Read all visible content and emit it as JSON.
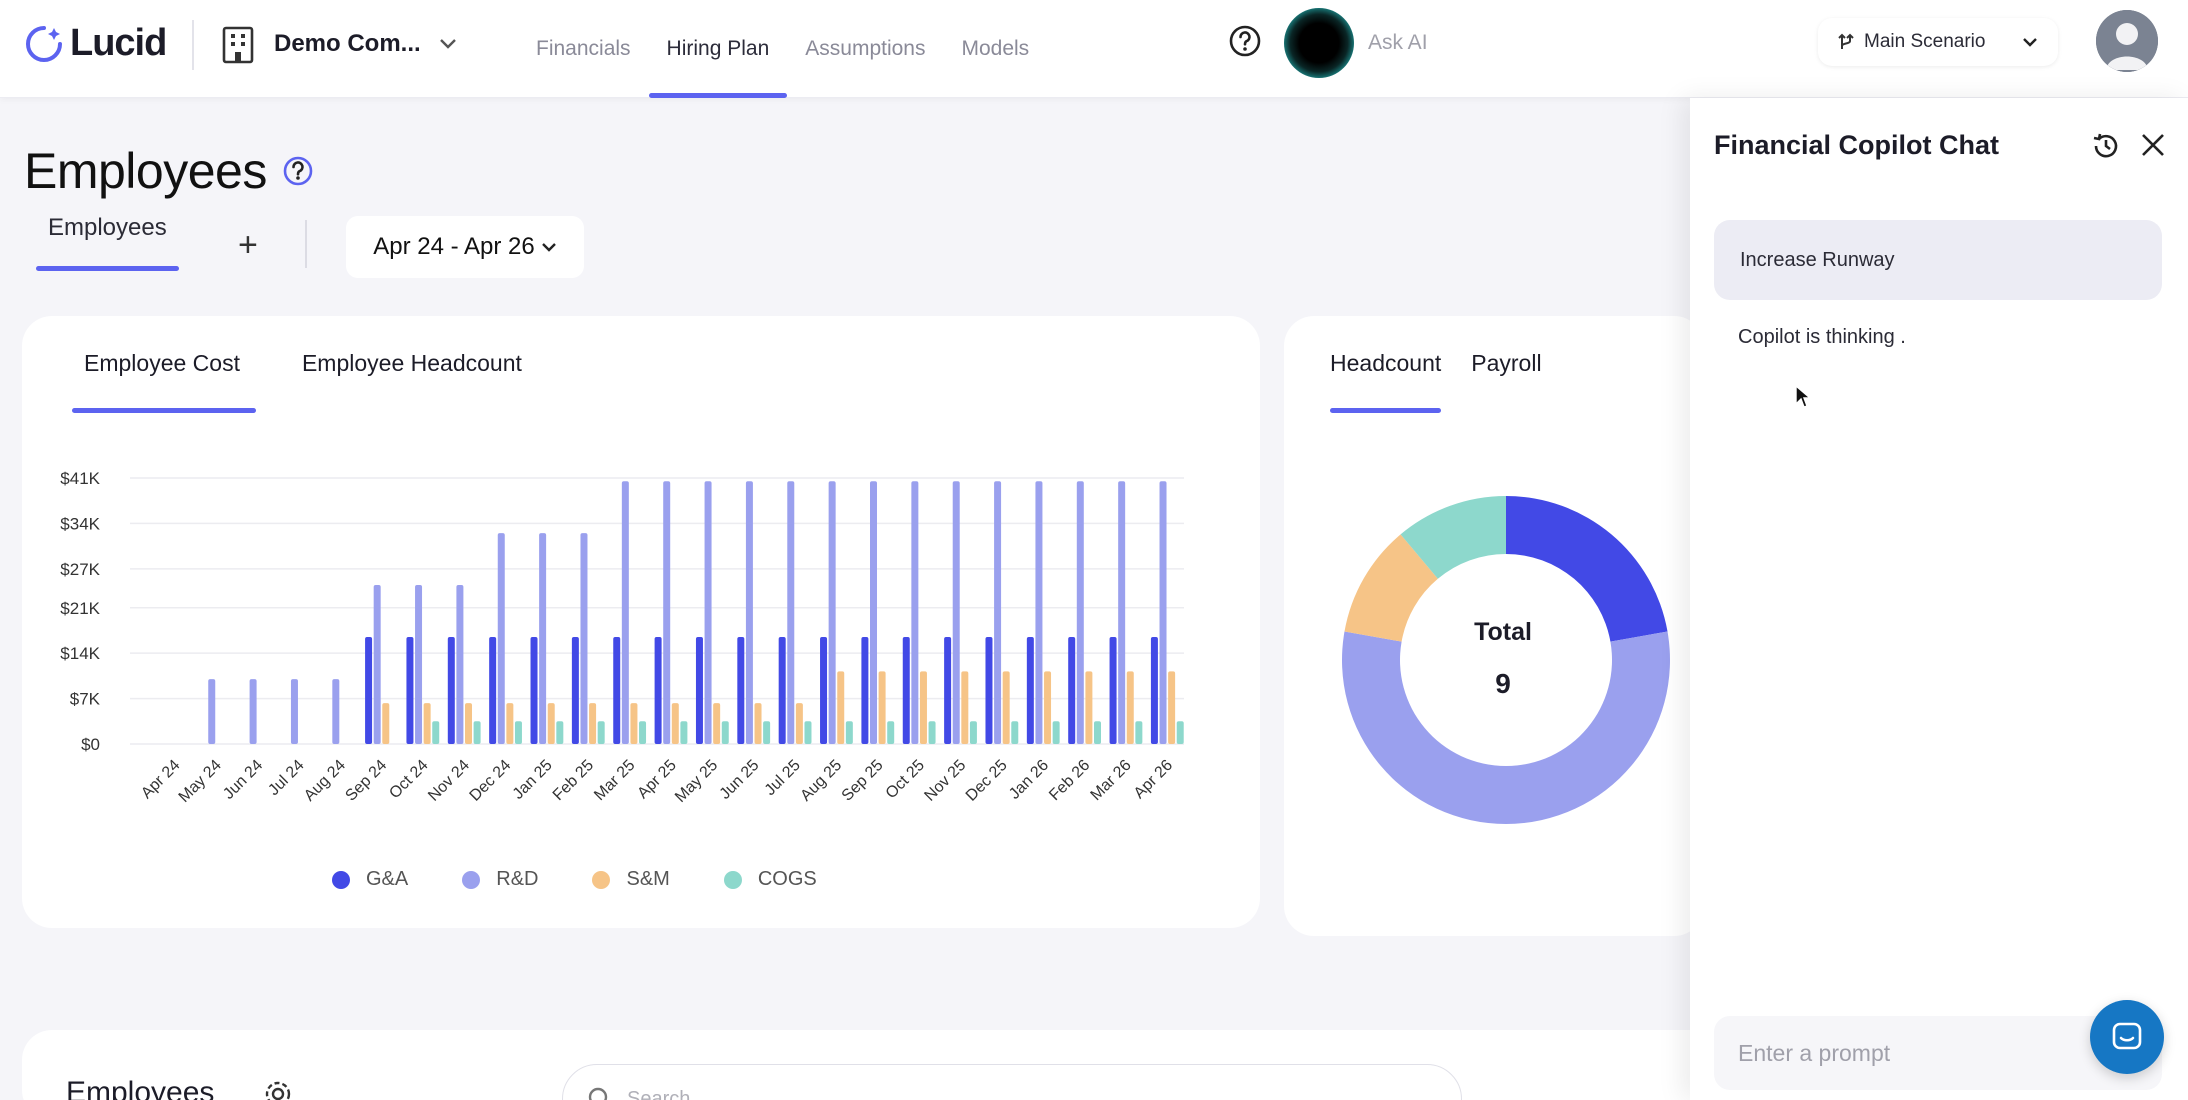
{
  "app": {
    "logo_text": "Lucid"
  },
  "company": {
    "name": "Demo Com..."
  },
  "nav": {
    "items": [
      {
        "label": "Financials",
        "active": false
      },
      {
        "label": "Hiring Plan",
        "active": true
      },
      {
        "label": "Assumptions",
        "active": false
      },
      {
        "label": "Models",
        "active": false
      }
    ]
  },
  "askai": {
    "placeholder": "Ask AI"
  },
  "scenario": {
    "label": "Main Scenario"
  },
  "page": {
    "title": "Employees",
    "subtab_label": "Employees",
    "add_label": "+",
    "date_range": "Apr 24 - Apr 26"
  },
  "cost_card": {
    "tabs": [
      {
        "label": "Employee Cost",
        "active": true
      },
      {
        "label": "Employee Headcount",
        "active": false
      }
    ]
  },
  "head_card": {
    "tabs": [
      {
        "label": "Headcount",
        "active": true
      },
      {
        "label": "Payroll",
        "active": false
      }
    ],
    "total_label": "Total",
    "total_value": "9"
  },
  "table_card": {
    "title": "Employees",
    "search_placeholder": "Search"
  },
  "copilot": {
    "title": "Financial Copilot Chat",
    "user_message": "Increase Runway",
    "thinking_text": "Copilot is thinking .",
    "input_placeholder": "Enter a prompt"
  },
  "colors": {
    "accent": "#5c63f0",
    "ga": "#4249e6",
    "rd": "#9aa0ee",
    "sm": "#f6c487",
    "cogs": "#8dd8cc"
  },
  "chart_data": [
    {
      "type": "bar",
      "title": "",
      "xlabel": "",
      "ylabel": "",
      "ylim": [
        0,
        41000
      ],
      "y_ticks": [
        "$0",
        "$7K",
        "$14K",
        "$21K",
        "$27K",
        "$34K",
        "$41K"
      ],
      "y_tick_values": [
        0,
        7000,
        14000,
        21000,
        27000,
        34000,
        41000
      ],
      "grid": true,
      "legend": "bottom",
      "categories": [
        "Apr 24",
        "May 24",
        "Jun 24",
        "Jul 24",
        "Aug 24",
        "Sep 24",
        "Oct 24",
        "Nov 24",
        "Dec 24",
        "Jan 25",
        "Feb 25",
        "Mar 25",
        "Apr 25",
        "May 25",
        "Jun 25",
        "Jul 25",
        "Aug 25",
        "Sep 25",
        "Oct 25",
        "Nov 25",
        "Dec 25",
        "Jan 26",
        "Feb 26",
        "Mar 26",
        "Apr 26"
      ],
      "series": [
        {
          "name": "G&A",
          "color": "#4249e6",
          "values": [
            0,
            0,
            0,
            0,
            0,
            16500,
            16500,
            16500,
            16500,
            16500,
            16500,
            16500,
            16500,
            16500,
            16500,
            16500,
            16500,
            16500,
            16500,
            16500,
            16500,
            16500,
            16500,
            16500,
            16500
          ]
        },
        {
          "name": "R&D",
          "color": "#9aa0ee",
          "values": [
            0,
            10000,
            10000,
            10000,
            10000,
            24500,
            24500,
            24500,
            32500,
            32500,
            32500,
            40500,
            40500,
            40500,
            40500,
            40500,
            40500,
            40500,
            40500,
            40500,
            40500,
            40500,
            40500,
            40500,
            40500
          ]
        },
        {
          "name": "S&M",
          "color": "#f6c487",
          "values": [
            0,
            0,
            0,
            0,
            0,
            6300,
            6300,
            6300,
            6300,
            6300,
            6300,
            6300,
            6300,
            6300,
            6300,
            6300,
            11200,
            11200,
            11200,
            11200,
            11200,
            11200,
            11200,
            11200,
            11200
          ]
        },
        {
          "name": "COGS",
          "color": "#8dd8cc",
          "values": [
            0,
            0,
            0,
            0,
            0,
            0,
            3500,
            3500,
            3500,
            3500,
            3500,
            3500,
            3500,
            3500,
            3500,
            3500,
            3500,
            3500,
            3500,
            3500,
            3500,
            3500,
            3500,
            3500,
            3500
          ]
        }
      ]
    },
    {
      "type": "pie",
      "title": "",
      "categories": [
        "G&A",
        "R&D",
        "S&M",
        "COGS"
      ],
      "values": [
        2,
        5,
        1,
        1
      ],
      "colors": [
        "#4249e6",
        "#9aa0ee",
        "#f6c487",
        "#8dd8cc"
      ]
    }
  ]
}
